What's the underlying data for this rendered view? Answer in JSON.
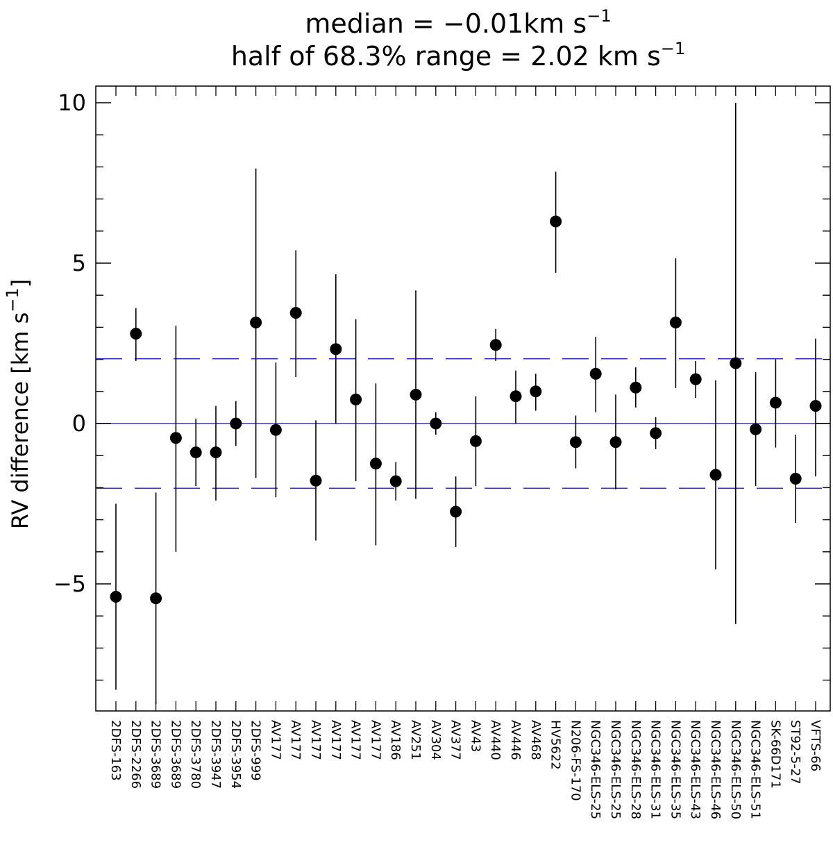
{
  "chart_data": {
    "type": "scatter",
    "title_lines": [
      {
        "main": "median = −0.01km s",
        "sup": "−1"
      },
      {
        "main": "half of 68.3% range = 2.02 km s",
        "sup": "−1"
      }
    ],
    "ylabel": {
      "main": "RV difference [km s",
      "sup": "−1",
      "close": "]"
    },
    "ylim": [
      -8.7,
      10.5
    ],
    "yticks": [
      {
        "value": -5,
        "label": "−5"
      },
      {
        "value": 0,
        "label": "0"
      },
      {
        "value": 5,
        "label": "5"
      },
      {
        "value": 10,
        "label": "10"
      }
    ],
    "categories": [
      "2DFS-163",
      "2DFS-2266",
      "2DFS-3689",
      "2DFS-3689",
      "2DFS-3780",
      "2DFS-3947",
      "2DFS-3954",
      "2DFS-999",
      "AV177",
      "AV177",
      "AV177",
      "AV177",
      "AV177",
      "AV177",
      "AV186",
      "AV251",
      "AV304",
      "AV377",
      "AV43",
      "AV440",
      "AV446",
      "AV468",
      "HV5622",
      "N206-FS-170",
      "NGC346-ELS-25",
      "NGC346-ELS-25",
      "NGC346-ELS-28",
      "NGC346-ELS-31",
      "NGC346-ELS-35",
      "NGC346-ELS-43",
      "NGC346-ELS-46",
      "NGC346-ELS-50",
      "NGC346-ELS-51",
      "SK-66D171",
      "ST92-5-27",
      "VFTS-66"
    ],
    "points": [
      {
        "y": -5.4,
        "lo": -8.3,
        "hi": -2.5
      },
      {
        "y": 2.8,
        "lo": 1.95,
        "hi": 3.6
      },
      {
        "y": -5.45,
        "lo": -8.75,
        "hi": -2.15
      },
      {
        "y": -0.45,
        "lo": -4.0,
        "hi": 3.05
      },
      {
        "y": -0.9,
        "lo": -1.95,
        "hi": 0.15
      },
      {
        "y": -0.9,
        "lo": -2.4,
        "hi": 0.55
      },
      {
        "y": 0.0,
        "lo": -0.7,
        "hi": 0.7
      },
      {
        "y": 3.15,
        "lo": -1.7,
        "hi": 7.95
      },
      {
        "y": -0.2,
        "lo": -2.3,
        "hi": 1.9
      },
      {
        "y": 3.45,
        "lo": 1.45,
        "hi": 5.4
      },
      {
        "y": -1.78,
        "lo": -3.65,
        "hi": 0.1
      },
      {
        "y": 2.32,
        "lo": 0.0,
        "hi": 4.65
      },
      {
        "y": 0.75,
        "lo": -1.8,
        "hi": 3.25
      },
      {
        "y": -1.25,
        "lo": -3.8,
        "hi": 1.25
      },
      {
        "y": -1.8,
        "lo": -2.4,
        "hi": -1.2
      },
      {
        "y": 0.9,
        "lo": -2.35,
        "hi": 4.15
      },
      {
        "y": 0.0,
        "lo": -0.35,
        "hi": 0.35
      },
      {
        "y": -2.75,
        "lo": -3.85,
        "hi": -1.65
      },
      {
        "y": -0.55,
        "lo": -1.95,
        "hi": 0.85
      },
      {
        "y": 2.45,
        "lo": 1.95,
        "hi": 2.95
      },
      {
        "y": 0.85,
        "lo": 0.0,
        "hi": 1.65
      },
      {
        "y": 1.0,
        "lo": 0.4,
        "hi": 1.55
      },
      {
        "y": 6.3,
        "lo": 4.7,
        "hi": 7.85
      },
      {
        "y": -0.58,
        "lo": -1.4,
        "hi": 0.25
      },
      {
        "y": 1.55,
        "lo": 0.35,
        "hi": 2.7
      },
      {
        "y": -0.58,
        "lo": -2.05,
        "hi": 0.9
      },
      {
        "y": 1.12,
        "lo": 0.5,
        "hi": 1.75
      },
      {
        "y": -0.3,
        "lo": -0.8,
        "hi": 0.2
      },
      {
        "y": 3.15,
        "lo": 1.1,
        "hi": 5.15
      },
      {
        "y": 1.38,
        "lo": 0.8,
        "hi": 1.95
      },
      {
        "y": -1.6,
        "lo": -4.55,
        "hi": 1.35
      },
      {
        "y": 1.88,
        "lo": -6.25,
        "hi": 10.0
      },
      {
        "y": -0.18,
        "lo": -1.95,
        "hi": 1.6
      },
      {
        "y": 0.65,
        "lo": -0.75,
        "hi": 2.0
      },
      {
        "y": -1.72,
        "lo": -3.1,
        "hi": -0.35
      },
      {
        "y": 0.55,
        "lo": -1.65,
        "hi": 2.65
      }
    ],
    "reference_lines": [
      {
        "y": 0,
        "style": "solid"
      },
      {
        "y": 2.02,
        "style": "dashed"
      },
      {
        "y": -2.02,
        "style": "dashed"
      }
    ],
    "colors": {
      "points": "#000000",
      "reference": "#3a2fd6",
      "axes": "#000000"
    }
  }
}
